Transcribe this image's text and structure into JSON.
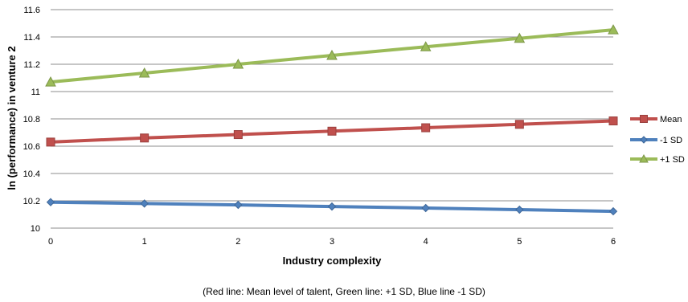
{
  "chart_data": {
    "type": "line",
    "xlabel": "Industry complexity",
    "ylabel": "ln (performance) in venture 2",
    "x": [
      0,
      1,
      2,
      3,
      4,
      5,
      6
    ],
    "xlim": [
      0,
      6
    ],
    "ylim": [
      10,
      11.6
    ],
    "yticks": [
      "10",
      "10.2",
      "10.4",
      "10.6",
      "10.8",
      "11",
      "11.2",
      "11.4",
      "11.6"
    ],
    "xticks": [
      "0",
      "1",
      "2",
      "3",
      "4",
      "5",
      "6"
    ],
    "grid": true,
    "legend_position": "right",
    "series": [
      {
        "name": "Mean",
        "color": "#C0504D",
        "marker": "square",
        "values": [
          10.63,
          10.66,
          10.685,
          10.71,
          10.735,
          10.76,
          10.785
        ]
      },
      {
        "name": "-1 SD",
        "color": "#4F81BD",
        "marker": "diamond",
        "values": [
          10.19,
          10.18,
          10.17,
          10.158,
          10.147,
          10.135,
          10.123
        ]
      },
      {
        "name": "+1 SD",
        "color": "#9BBB59",
        "marker": "triangle",
        "values": [
          11.07,
          11.135,
          11.2,
          11.265,
          11.328,
          11.39,
          11.452
        ]
      }
    ]
  },
  "caption": "(Red line: Mean level of talent, Green line: +1 SD, Blue line -1 SD)"
}
